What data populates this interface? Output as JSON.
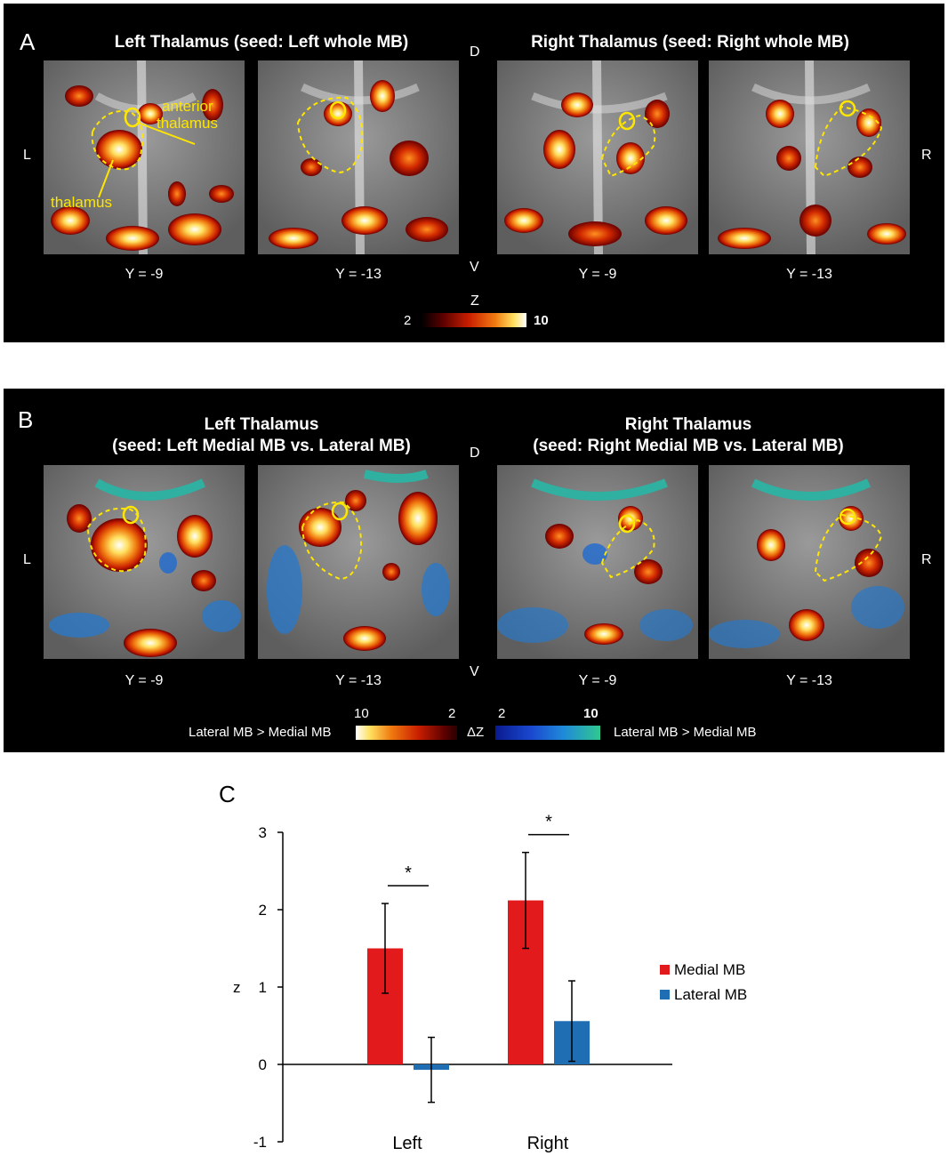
{
  "panel_a": {
    "label": "A",
    "title_left": "Left Thalamus (seed: Left whole MB)",
    "title_right": "Right Thalamus (seed: Right whole MB)",
    "orient_d": "D",
    "orient_v": "V",
    "orient_l": "L",
    "orient_r": "R",
    "slices": [
      "Y = -9",
      "Y = -13",
      "Y = -9",
      "Y = -13"
    ],
    "annotation_anterior_line1": "anterior",
    "annotation_anterior_line2": "thalamus",
    "annotation_thalamus": "thalamus",
    "colorbar_label": "Z",
    "colorbar_min": "2",
    "colorbar_max": "10"
  },
  "panel_b": {
    "label": "B",
    "title_left_line1": "Left Thalamus",
    "title_left_line2": "(seed: Left Medial MB vs. Lateral MB)",
    "title_right_line1": "Right Thalamus",
    "title_right_line2": "(seed: Right Medial MB vs. Lateral MB)",
    "orient_d": "D",
    "orient_v": "V",
    "orient_l": "L",
    "orient_r": "R",
    "slices": [
      "Y = -9",
      "Y = -13",
      "Y = -9",
      "Y = -13"
    ],
    "legend_left": "Lateral MB > Medial MB",
    "legend_right": "Lateral MB > Medial MB",
    "colorbar_label": "ΔZ",
    "warm_max": "10",
    "warm_min": "2",
    "cool_min": "2",
    "cool_max": "10"
  },
  "chart_data": {
    "panel_label": "C",
    "type": "bar",
    "categories": [
      "Left",
      "Right"
    ],
    "series": [
      {
        "name": "Medial MB",
        "color": "#e31a1c",
        "values": [
          1.5,
          2.12
        ],
        "errors": [
          0.58,
          0.62
        ]
      },
      {
        "name": "Lateral MB",
        "color": "#1f6eb4",
        "values": [
          -0.07,
          0.56
        ],
        "errors": [
          0.42,
          0.52
        ]
      }
    ],
    "ylabel": "z",
    "ylim": [
      -1,
      3
    ],
    "yticks": [
      -1,
      0,
      1,
      2,
      3
    ],
    "significance": [
      "*",
      "*"
    ]
  }
}
